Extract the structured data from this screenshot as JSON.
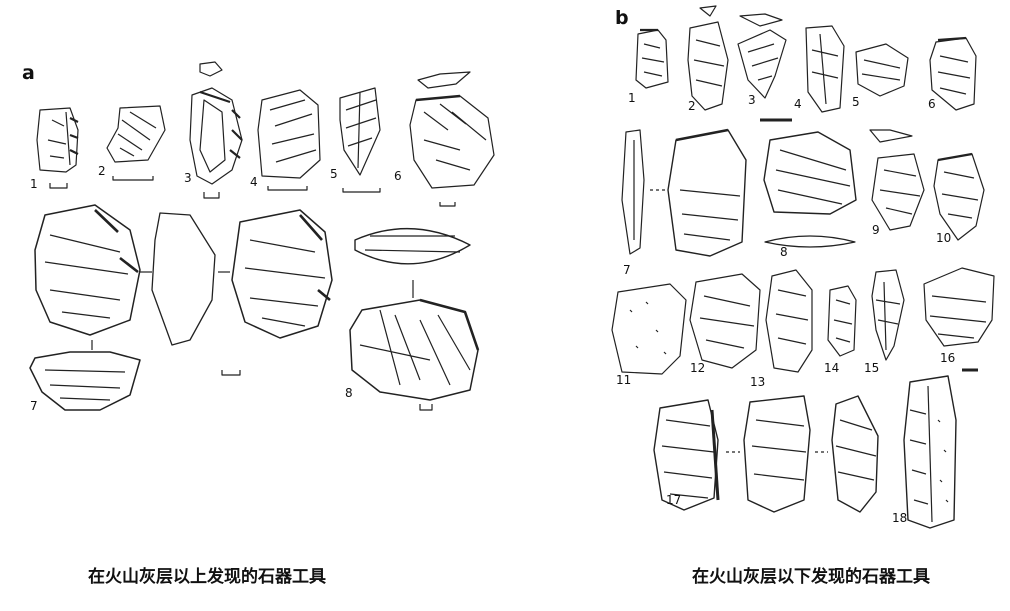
{
  "panels": [
    {
      "label": "a",
      "caption": "在火山灰层以上发现的石器工具",
      "artifacts": [
        "1",
        "2",
        "3",
        "4",
        "5",
        "6",
        "7",
        "8"
      ]
    },
    {
      "label": "b",
      "caption": "在火山灰层以下发现的石器工具",
      "artifacts": [
        "1",
        "2",
        "3",
        "4",
        "5",
        "6",
        "7",
        "8",
        "9",
        "10",
        "11",
        "12",
        "13",
        "14",
        "15",
        "16",
        "17",
        "18"
      ]
    }
  ]
}
